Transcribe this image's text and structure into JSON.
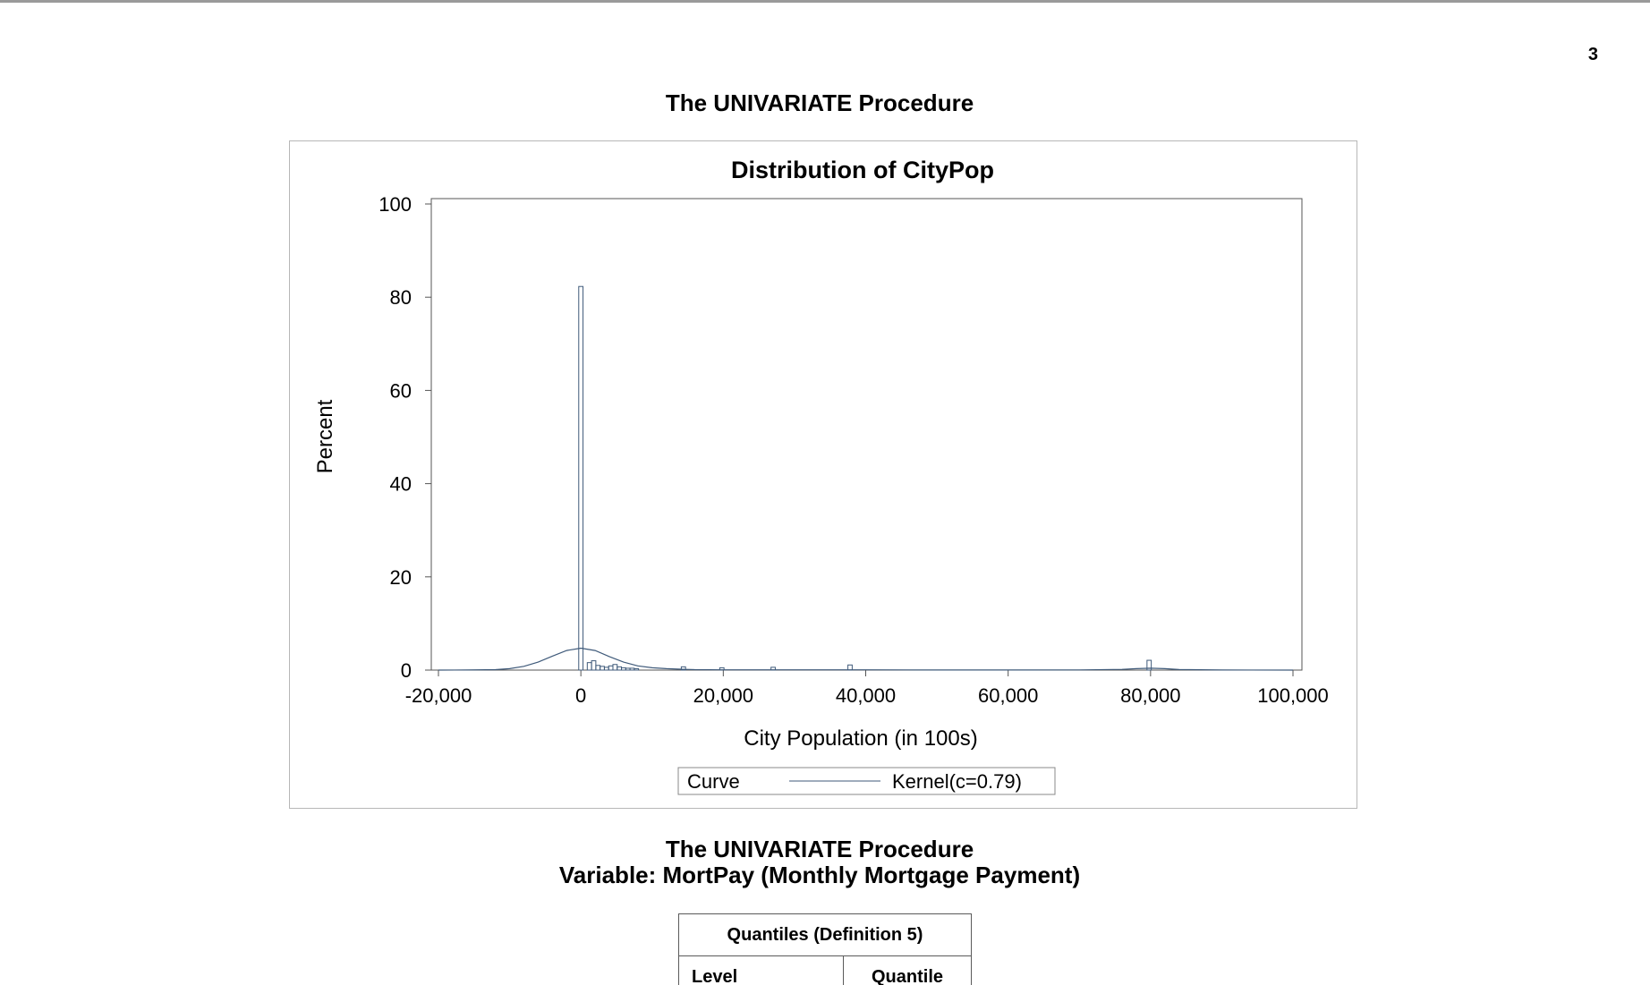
{
  "page": {
    "number": "3"
  },
  "procedure_title": "The UNIVARIATE Procedure",
  "chart_data": {
    "type": "bar",
    "title": "Distribution of CityPop",
    "xlabel": "City Population (in 100s)",
    "ylabel": "Percent",
    "xlim": [
      -20000,
      100000
    ],
    "ylim": [
      0,
      100
    ],
    "xticks": [
      -20000,
      0,
      20000,
      40000,
      60000,
      80000,
      100000
    ],
    "xtick_labels": [
      "-20,000",
      "0",
      "20,000",
      "40,000",
      "60,000",
      "80,000",
      "100,000"
    ],
    "yticks": [
      0,
      20,
      40,
      60,
      80,
      100
    ],
    "ytick_labels": [
      "0",
      "20",
      "40",
      "60",
      "80",
      "100"
    ],
    "bin_width": 600,
    "bins": [
      {
        "x": 0,
        "percent": 82.3
      },
      {
        "x": 1200,
        "percent": 1.6
      },
      {
        "x": 1800,
        "percent": 2.0
      },
      {
        "x": 2400,
        "percent": 1.0
      },
      {
        "x": 3000,
        "percent": 0.8
      },
      {
        "x": 3600,
        "percent": 0.6
      },
      {
        "x": 4200,
        "percent": 0.9
      },
      {
        "x": 4800,
        "percent": 1.2
      },
      {
        "x": 5400,
        "percent": 0.7
      },
      {
        "x": 6000,
        "percent": 0.5
      },
      {
        "x": 6600,
        "percent": 0.4
      },
      {
        "x": 7200,
        "percent": 0.4
      },
      {
        "x": 7800,
        "percent": 0.3
      },
      {
        "x": 14400,
        "percent": 0.7
      },
      {
        "x": 19800,
        "percent": 0.5
      },
      {
        "x": 27000,
        "percent": 0.6
      },
      {
        "x": 37800,
        "percent": 1.1
      },
      {
        "x": 79800,
        "percent": 2.1
      }
    ],
    "kernel_curve": {
      "name": "Kernel(c=0.79)",
      "x": [
        -20000,
        -16000,
        -12000,
        -10000,
        -8000,
        -6000,
        -4000,
        -2000,
        0,
        2000,
        4000,
        6000,
        8000,
        10000,
        12000,
        14000,
        16000,
        20000,
        30000,
        40000,
        50000,
        60000,
        70000,
        76000,
        78000,
        80000,
        82000,
        84000,
        90000,
        100000
      ],
      "y": [
        0,
        0.02,
        0.1,
        0.3,
        0.8,
        1.7,
        3.0,
        4.2,
        4.7,
        4.2,
        2.9,
        1.7,
        0.9,
        0.5,
        0.3,
        0.2,
        0.1,
        0.05,
        0.05,
        0.05,
        0.02,
        0.02,
        0.03,
        0.15,
        0.3,
        0.4,
        0.3,
        0.12,
        0.02,
        0
      ]
    },
    "legend": {
      "position": "bottom",
      "label": "Curve",
      "entry": "Kernel(c=0.79)"
    },
    "grid": false
  },
  "section2": {
    "title": "The UNIVARIATE Procedure",
    "variable_line": "Variable:  MortPay  (Monthly Mortgage Payment)"
  },
  "quantiles_table": {
    "caption": "Quantiles  (Definition  5)",
    "headers": [
      "Level",
      "Quantile"
    ]
  },
  "colors": {
    "bar_stroke": "#3f5a7a",
    "curve": "#3f5a7a",
    "axis": "#555555",
    "frame": "#b7b7b7"
  }
}
